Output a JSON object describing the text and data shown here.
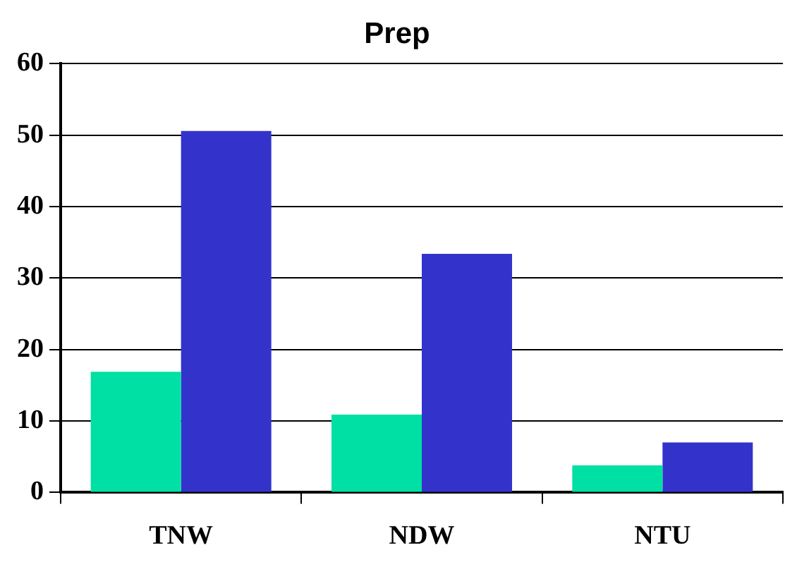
{
  "chart_data": {
    "type": "bar",
    "title": "Prep",
    "categories": [
      "TNW",
      "NDW",
      "NTU"
    ],
    "series": [
      {
        "color": "#00e0a4",
        "values": [
          16.9,
          10.9,
          3.8
        ]
      },
      {
        "color": "#3333cc",
        "values": [
          50.6,
          33.4,
          7.0
        ]
      }
    ],
    "ylim": [
      0,
      60
    ],
    "yticks": [
      0,
      10,
      20,
      30,
      40,
      50,
      60
    ],
    "grid": "y",
    "legend": false
  }
}
